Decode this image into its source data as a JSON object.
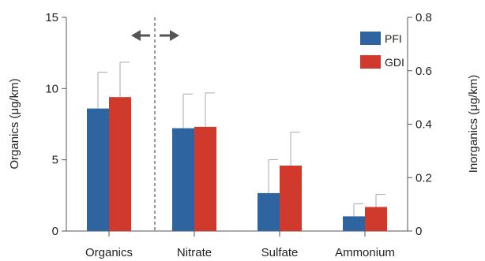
{
  "chart_data": {
    "type": "bar",
    "categories": [
      "Organics",
      "Nitrate",
      "Sulfate",
      "Ammonium"
    ],
    "series": [
      {
        "name": "PFI",
        "color": "#2e64a0",
        "values": [
          8.6,
          0.385,
          0.142,
          0.055
        ],
        "errors": [
          2.55,
          0.128,
          0.125,
          0.047
        ]
      },
      {
        "name": "GDI",
        "color": "#d03a2d",
        "values": [
          9.4,
          0.39,
          0.245,
          0.09
        ],
        "errors": [
          2.45,
          0.127,
          0.125,
          0.047
        ]
      }
    ],
    "axes": {
      "left": {
        "label": "Organics (μg/km)",
        "range": [
          0,
          15
        ],
        "ticks": [
          0,
          5,
          10,
          15
        ],
        "tick_labels": [
          "0",
          "5",
          "10",
          "15"
        ]
      },
      "right": {
        "label": "Inorganics (μg/km)",
        "range": [
          0,
          0.8
        ],
        "ticks": [
          0,
          0.2,
          0.4,
          0.6,
          0.8
        ],
        "tick_labels": [
          "0",
          "0.2",
          "0.4",
          "0.6",
          "0.8"
        ]
      }
    },
    "axis_assignment": [
      "left",
      "right",
      "right",
      "right"
    ],
    "divider": {
      "style": "dashed",
      "between": [
        "Organics",
        "Nitrate"
      ],
      "arrows": "double-headed horizontal"
    },
    "legend": {
      "position": "top-right"
    },
    "grid": false
  }
}
